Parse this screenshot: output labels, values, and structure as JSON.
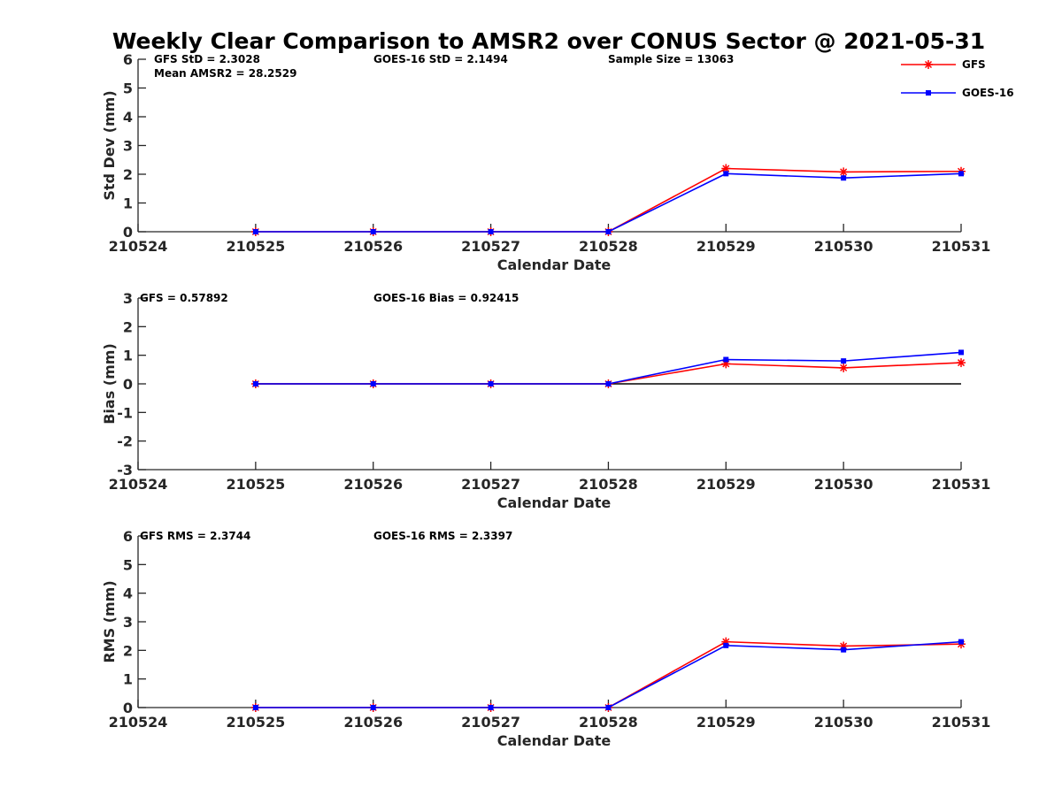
{
  "chart_data": {
    "title": "Weekly Clear Comparison to AMSR2 over CONUS Sector @ 2021-05-31",
    "type": "line",
    "legend": {
      "position": "top-right",
      "entries": [
        {
          "name": "GFS",
          "color": "#ff0000",
          "marker": "asterisk"
        },
        {
          "name": "GOES-16",
          "color": "#0000ff",
          "marker": "square"
        }
      ]
    },
    "panels": [
      {
        "id": "stddev",
        "type": "line",
        "xlabel": "Calendar Date",
        "ylabel": "Std Dev (mm)",
        "categories": [
          "210524",
          "210525",
          "210526",
          "210527",
          "210528",
          "210529",
          "210530",
          "210531"
        ],
        "ylim": [
          0,
          6
        ],
        "yticks": [
          "0",
          "1",
          "2",
          "3",
          "4",
          "5",
          "6"
        ],
        "zero_line": false,
        "series": [
          {
            "name": "GFS",
            "color": "#ff0000",
            "x": [
              "210525",
              "210526",
              "210527",
              "210528",
              "210529",
              "210530",
              "210531"
            ],
            "values": [
              0,
              0,
              0,
              0,
              2.2,
              2.08,
              2.1
            ]
          },
          {
            "name": "GOES-16",
            "color": "#0000ff",
            "x": [
              "210525",
              "210526",
              "210527",
              "210528",
              "210529",
              "210530",
              "210531"
            ],
            "values": [
              0,
              0,
              0,
              0,
              2.02,
              1.87,
              2.02
            ]
          }
        ],
        "annotations": [
          "GFS StD = 2.3028",
          "GOES-16 StD = 2.1494",
          "Sample Size = 13063",
          "Mean AMSR2 = 28.2529"
        ]
      },
      {
        "id": "bias",
        "type": "line",
        "xlabel": "Calendar Date",
        "ylabel": "Bias (mm)",
        "categories": [
          "210524",
          "210525",
          "210526",
          "210527",
          "210528",
          "210529",
          "210530",
          "210531"
        ],
        "ylim": [
          -3,
          3
        ],
        "yticks": [
          "-3",
          "-2",
          "-1",
          "0",
          "1",
          "2",
          "3"
        ],
        "zero_line": true,
        "series": [
          {
            "name": "GFS",
            "color": "#ff0000",
            "x": [
              "210525",
              "210526",
              "210527",
              "210528",
              "210529",
              "210530",
              "210531"
            ],
            "values": [
              0,
              0,
              0,
              0,
              0.7,
              0.56,
              0.74
            ]
          },
          {
            "name": "GOES-16",
            "color": "#0000ff",
            "x": [
              "210525",
              "210526",
              "210527",
              "210528",
              "210529",
              "210530",
              "210531"
            ],
            "values": [
              0,
              0,
              0,
              0,
              0.85,
              0.8,
              1.1
            ]
          }
        ],
        "annotations": [
          "GFS = 0.57892",
          "GOES-16 Bias  = 0.92415"
        ]
      },
      {
        "id": "rms",
        "type": "line",
        "xlabel": "Calendar Date",
        "ylabel": "RMS (mm)",
        "categories": [
          "210524",
          "210525",
          "210526",
          "210527",
          "210528",
          "210529",
          "210530",
          "210531"
        ],
        "ylim": [
          0,
          6
        ],
        "yticks": [
          "0",
          "1",
          "2",
          "3",
          "4",
          "5",
          "6"
        ],
        "zero_line": false,
        "series": [
          {
            "name": "GFS",
            "color": "#ff0000",
            "x": [
              "210525",
              "210526",
              "210527",
              "210528",
              "210529",
              "210530",
              "210531"
            ],
            "values": [
              0,
              0,
              0,
              0,
              2.3,
              2.15,
              2.22
            ]
          },
          {
            "name": "GOES-16",
            "color": "#0000ff",
            "x": [
              "210525",
              "210526",
              "210527",
              "210528",
              "210529",
              "210530",
              "210531"
            ],
            "values": [
              0,
              0,
              0,
              0,
              2.17,
              2.02,
              2.3
            ]
          }
        ],
        "annotations": [
          "GFS RMS = 2.3744",
          "GOES-16 RMS = 2.3397"
        ]
      }
    ]
  }
}
